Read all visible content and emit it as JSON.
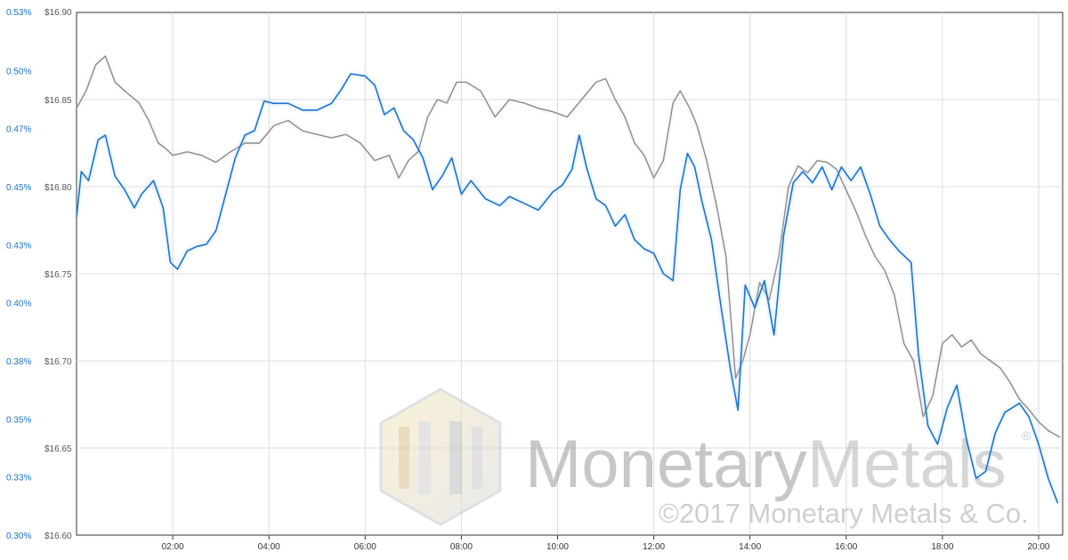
{
  "chart_data": {
    "type": "line",
    "grid": true,
    "legend": "none",
    "x_unit": "hours",
    "x_ticks": [
      {
        "value": 2,
        "label": "02:00"
      },
      {
        "value": 4,
        "label": "04:00"
      },
      {
        "value": 6,
        "label": "06:00"
      },
      {
        "value": 8,
        "label": "08:00"
      },
      {
        "value": 10,
        "label": "10:00"
      },
      {
        "value": 12,
        "label": "12:00"
      },
      {
        "value": 14,
        "label": "14:00"
      },
      {
        "value": 16,
        "label": "16:00"
      },
      {
        "value": 18,
        "label": "18:00"
      },
      {
        "value": 20,
        "label": "20:00"
      }
    ],
    "x_range": [
      0,
      20.5
    ],
    "y_left": {
      "color": "#1a73c8",
      "range": [
        0.3,
        0.53
      ],
      "ticks": [
        "0.30%",
        "0.33%",
        "0.35%",
        "0.38%",
        "0.40%",
        "0.43%",
        "0.45%",
        "0.47%",
        "0.50%",
        "0.53%"
      ]
    },
    "y_right": {
      "color": "#555555",
      "range": [
        16.6,
        16.9
      ],
      "ticks": [
        "$16.60",
        "$16.65",
        "$16.70",
        "$16.75",
        "$16.80",
        "$16.85",
        "$16.90"
      ]
    },
    "series": [
      {
        "axis": "left",
        "color": "#1a73c8",
        "points": [
          [
            0.0,
            0.44
          ],
          [
            0.1,
            0.46
          ],
          [
            0.25,
            0.456
          ],
          [
            0.45,
            0.474
          ],
          [
            0.6,
            0.476
          ],
          [
            0.8,
            0.458
          ],
          [
            1.0,
            0.452
          ],
          [
            1.2,
            0.444
          ],
          [
            1.35,
            0.45
          ],
          [
            1.6,
            0.456
          ],
          [
            1.8,
            0.444
          ],
          [
            1.95,
            0.42
          ],
          [
            2.1,
            0.417
          ],
          [
            2.3,
            0.425
          ],
          [
            2.5,
            0.427
          ],
          [
            2.7,
            0.428
          ],
          [
            2.9,
            0.434
          ],
          [
            3.1,
            0.45
          ],
          [
            3.3,
            0.466
          ],
          [
            3.5,
            0.476
          ],
          [
            3.7,
            0.478
          ],
          [
            3.9,
            0.491
          ],
          [
            4.1,
            0.49
          ],
          [
            4.4,
            0.49
          ],
          [
            4.7,
            0.487
          ],
          [
            5.0,
            0.487
          ],
          [
            5.3,
            0.49
          ],
          [
            5.5,
            0.496
          ],
          [
            5.7,
            0.503
          ],
          [
            6.0,
            0.502
          ],
          [
            6.2,
            0.498
          ],
          [
            6.4,
            0.485
          ],
          [
            6.6,
            0.488
          ],
          [
            6.8,
            0.478
          ],
          [
            7.0,
            0.474
          ],
          [
            7.2,
            0.466
          ],
          [
            7.4,
            0.452
          ],
          [
            7.6,
            0.458
          ],
          [
            7.8,
            0.466
          ],
          [
            8.0,
            0.45
          ],
          [
            8.2,
            0.456
          ],
          [
            8.5,
            0.448
          ],
          [
            8.8,
            0.445
          ],
          [
            9.0,
            0.449
          ],
          [
            9.3,
            0.446
          ],
          [
            9.6,
            0.443
          ],
          [
            9.9,
            0.451
          ],
          [
            10.1,
            0.454
          ],
          [
            10.3,
            0.461
          ],
          [
            10.45,
            0.476
          ],
          [
            10.6,
            0.462
          ],
          [
            10.8,
            0.448
          ],
          [
            11.0,
            0.445
          ],
          [
            11.2,
            0.436
          ],
          [
            11.4,
            0.441
          ],
          [
            11.6,
            0.43
          ],
          [
            11.8,
            0.426
          ],
          [
            12.0,
            0.424
          ],
          [
            12.2,
            0.415
          ],
          [
            12.4,
            0.412
          ],
          [
            12.55,
            0.452
          ],
          [
            12.7,
            0.468
          ],
          [
            12.85,
            0.462
          ],
          [
            13.0,
            0.447
          ],
          [
            13.2,
            0.43
          ],
          [
            13.4,
            0.4
          ],
          [
            13.6,
            0.372
          ],
          [
            13.75,
            0.355
          ],
          [
            13.9,
            0.41
          ],
          [
            14.1,
            0.4
          ],
          [
            14.3,
            0.412
          ],
          [
            14.5,
            0.388
          ],
          [
            14.7,
            0.432
          ],
          [
            14.9,
            0.455
          ],
          [
            15.1,
            0.46
          ],
          [
            15.3,
            0.455
          ],
          [
            15.5,
            0.462
          ],
          [
            15.7,
            0.452
          ],
          [
            15.9,
            0.462
          ],
          [
            16.1,
            0.456
          ],
          [
            16.3,
            0.462
          ],
          [
            16.5,
            0.45
          ],
          [
            16.7,
            0.436
          ],
          [
            16.9,
            0.43
          ],
          [
            17.1,
            0.425
          ],
          [
            17.35,
            0.42
          ],
          [
            17.5,
            0.38
          ],
          [
            17.7,
            0.348
          ],
          [
            17.9,
            0.34
          ],
          [
            18.1,
            0.356
          ],
          [
            18.3,
            0.366
          ],
          [
            18.5,
            0.342
          ],
          [
            18.7,
            0.325
          ],
          [
            18.9,
            0.328
          ],
          [
            19.1,
            0.345
          ],
          [
            19.3,
            0.354
          ],
          [
            19.6,
            0.358
          ],
          [
            19.8,
            0.352
          ],
          [
            20.0,
            0.34
          ],
          [
            20.2,
            0.325
          ],
          [
            20.4,
            0.314
          ]
        ]
      },
      {
        "axis": "right",
        "color": "#8a8a8a",
        "points": [
          [
            0.0,
            16.845
          ],
          [
            0.2,
            16.855
          ],
          [
            0.4,
            16.87
          ],
          [
            0.6,
            16.875
          ],
          [
            0.8,
            16.86
          ],
          [
            1.0,
            16.855
          ],
          [
            1.3,
            16.848
          ],
          [
            1.5,
            16.838
          ],
          [
            1.7,
            16.825
          ],
          [
            1.85,
            16.822
          ],
          [
            2.0,
            16.818
          ],
          [
            2.3,
            16.82
          ],
          [
            2.6,
            16.818
          ],
          [
            2.9,
            16.814
          ],
          [
            3.2,
            16.82
          ],
          [
            3.5,
            16.825
          ],
          [
            3.8,
            16.825
          ],
          [
            4.1,
            16.835
          ],
          [
            4.4,
            16.838
          ],
          [
            4.7,
            16.832
          ],
          [
            5.0,
            16.83
          ],
          [
            5.3,
            16.828
          ],
          [
            5.6,
            16.83
          ],
          [
            5.9,
            16.825
          ],
          [
            6.2,
            16.815
          ],
          [
            6.5,
            16.818
          ],
          [
            6.7,
            16.805
          ],
          [
            6.9,
            16.815
          ],
          [
            7.1,
            16.82
          ],
          [
            7.3,
            16.84
          ],
          [
            7.5,
            16.85
          ],
          [
            7.7,
            16.848
          ],
          [
            7.9,
            16.86
          ],
          [
            8.1,
            16.86
          ],
          [
            8.4,
            16.855
          ],
          [
            8.7,
            16.84
          ],
          [
            9.0,
            16.85
          ],
          [
            9.3,
            16.848
          ],
          [
            9.6,
            16.845
          ],
          [
            9.9,
            16.843
          ],
          [
            10.2,
            16.84
          ],
          [
            10.5,
            16.85
          ],
          [
            10.8,
            16.86
          ],
          [
            11.0,
            16.862
          ],
          [
            11.2,
            16.85
          ],
          [
            11.4,
            16.84
          ],
          [
            11.6,
            16.825
          ],
          [
            11.8,
            16.818
          ],
          [
            12.0,
            16.805
          ],
          [
            12.2,
            16.815
          ],
          [
            12.4,
            16.848
          ],
          [
            12.55,
            16.855
          ],
          [
            12.75,
            16.845
          ],
          [
            12.9,
            16.835
          ],
          [
            13.1,
            16.815
          ],
          [
            13.3,
            16.79
          ],
          [
            13.5,
            16.76
          ],
          [
            13.7,
            16.69
          ],
          [
            13.85,
            16.7
          ],
          [
            14.0,
            16.715
          ],
          [
            14.2,
            16.745
          ],
          [
            14.4,
            16.735
          ],
          [
            14.6,
            16.76
          ],
          [
            14.8,
            16.8
          ],
          [
            15.0,
            16.812
          ],
          [
            15.2,
            16.808
          ],
          [
            15.4,
            16.815
          ],
          [
            15.6,
            16.814
          ],
          [
            15.8,
            16.81
          ],
          [
            16.0,
            16.798
          ],
          [
            16.2,
            16.786
          ],
          [
            16.4,
            16.772
          ],
          [
            16.6,
            16.76
          ],
          [
            16.8,
            16.752
          ],
          [
            17.0,
            16.738
          ],
          [
            17.2,
            16.71
          ],
          [
            17.4,
            16.7
          ],
          [
            17.6,
            16.668
          ],
          [
            17.8,
            16.68
          ],
          [
            18.0,
            16.71
          ],
          [
            18.2,
            16.715
          ],
          [
            18.4,
            16.708
          ],
          [
            18.6,
            16.712
          ],
          [
            18.8,
            16.704
          ],
          [
            19.0,
            16.7
          ],
          [
            19.2,
            16.696
          ],
          [
            19.4,
            16.688
          ],
          [
            19.6,
            16.678
          ],
          [
            19.8,
            16.672
          ],
          [
            20.0,
            16.665
          ],
          [
            20.2,
            16.66
          ],
          [
            20.45,
            16.656
          ]
        ]
      }
    ]
  },
  "watermark": {
    "brand_bold": "Monetary",
    "brand_light": "Metals",
    "registered": "®",
    "copyright": "©2017 Monetary Metals & Co."
  }
}
